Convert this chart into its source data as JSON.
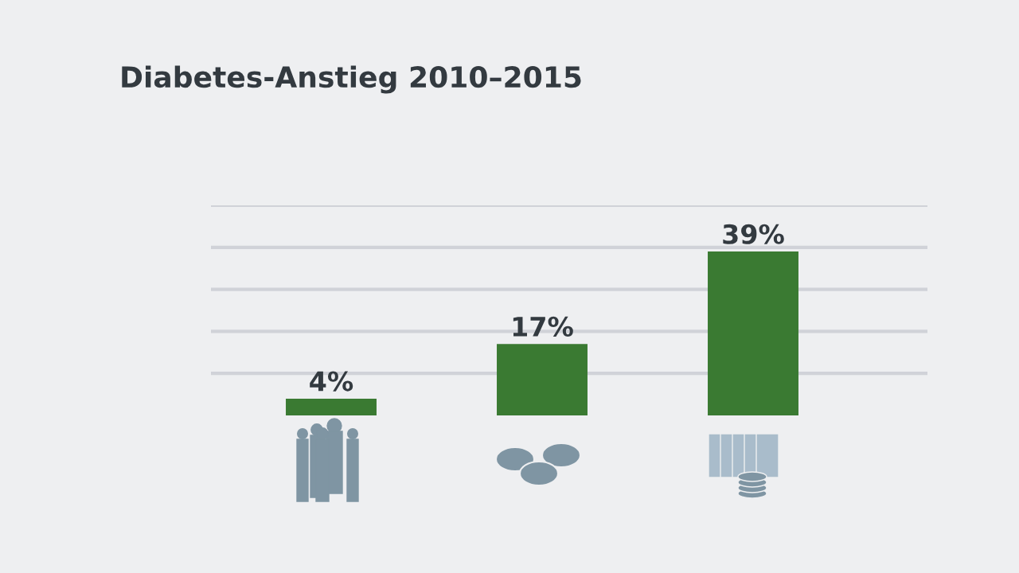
{
  "chart_data": {
    "type": "bar",
    "title": "Diabetes-Anstieg 2010–2015",
    "categories": [
      null,
      null,
      null
    ],
    "values": [
      4,
      17,
      39
    ],
    "value_labels": [
      "4%",
      "17%",
      "39%"
    ],
    "color": "#3a7a32",
    "ylim": [
      0,
      50
    ],
    "yticks": [
      {
        "value": 10,
        "label": null
      },
      {
        "value": 20,
        "label": null
      },
      {
        "value": 30,
        "label": null
      },
      {
        "value": 40,
        "label": null
      },
      {
        "value": 50,
        "label": null
      }
    ],
    "grid": "y"
  }
}
